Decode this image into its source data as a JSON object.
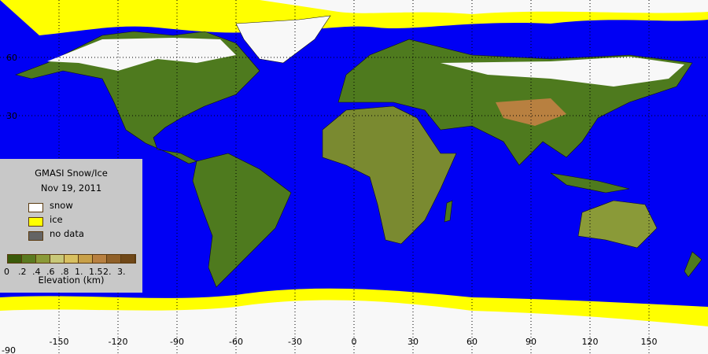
{
  "legend": {
    "title": "GMASI Snow/Ice",
    "date": "Nov 19, 2011",
    "items": [
      {
        "label": "snow",
        "color": "#ffffff"
      },
      {
        "label": "ice",
        "color": "#ffff00"
      },
      {
        "label": "no data",
        "color": "#646464"
      }
    ],
    "elevation_colors": [
      "#3a5a0a",
      "#5a7a20",
      "#8a9a38",
      "#c8c878",
      "#d8c060",
      "#c8a048",
      "#b88040",
      "#906028",
      "#704818"
    ],
    "elevation_ticks": [
      "0",
      ".2",
      ".4",
      ".6",
      ".8",
      "1.",
      "1.5",
      "2.",
      "3."
    ],
    "elevation_label": "Elevation (km)"
  },
  "axes": {
    "lon_labels": [
      "-150",
      "-120",
      "-90",
      "-60",
      "-30",
      "0",
      "30",
      "60",
      "90",
      "120",
      "150"
    ],
    "lat_labels": [
      "60",
      "30",
      "-90"
    ]
  },
  "colors": {
    "ocean": "#0000f4",
    "land": "#4e7a1e",
    "snow": "#f8f8f8",
    "ice": "#ffff00"
  }
}
